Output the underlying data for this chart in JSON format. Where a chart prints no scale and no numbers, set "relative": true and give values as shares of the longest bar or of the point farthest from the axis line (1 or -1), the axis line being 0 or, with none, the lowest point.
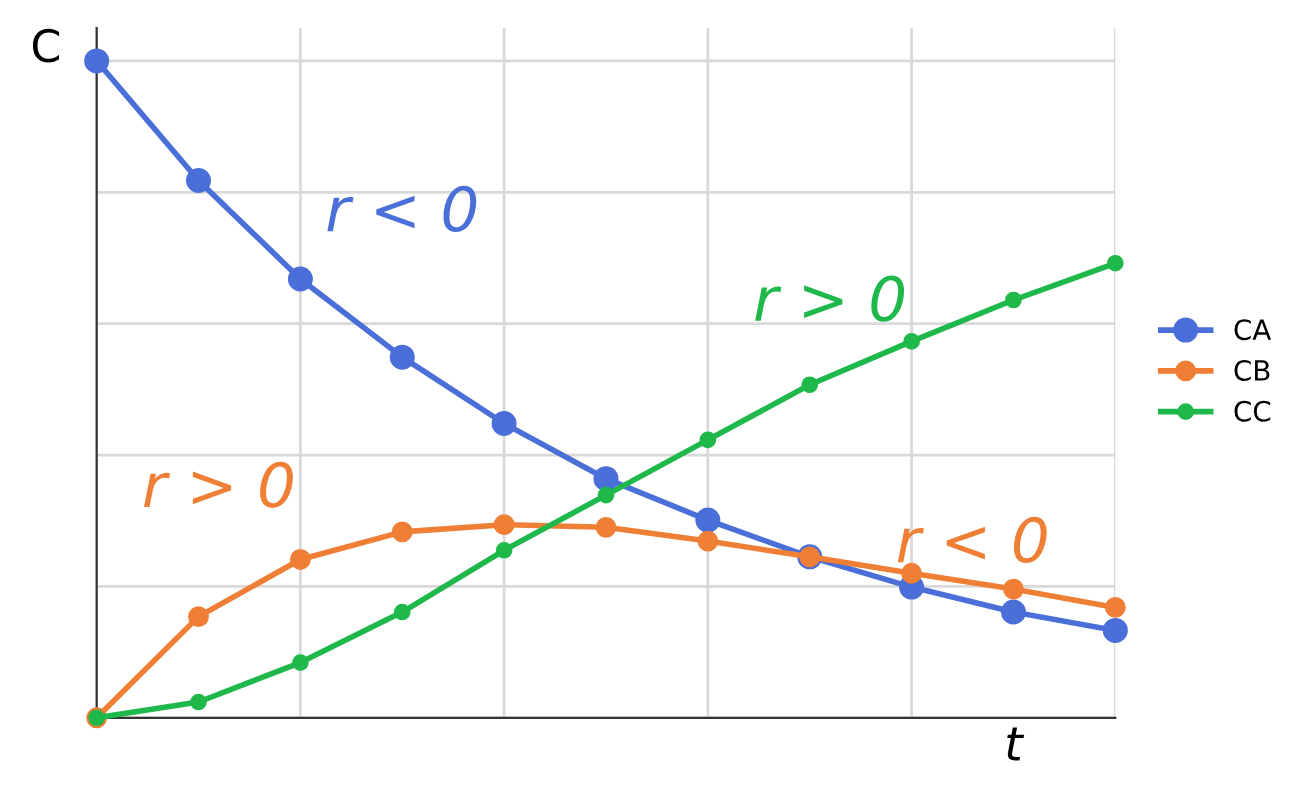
{
  "chart_data": {
    "type": "line",
    "relative": true,
    "xlabel": "t",
    "ylabel": "C",
    "categories": [
      null,
      null,
      null,
      null,
      null,
      null,
      null,
      null,
      null,
      null,
      null
    ],
    "series": [
      {
        "name": "CA",
        "color": "#4a6fd8",
        "values": [
          1,
          0.818,
          0.668,
          0.549,
          0.448,
          0.364,
          0.301,
          0.245,
          0.199,
          0.161,
          0.133
        ]
      },
      {
        "name": "CB",
        "color": "#f07f36",
        "values": [
          0,
          0.154,
          0.241,
          0.283,
          0.294,
          0.29,
          0.269,
          0.245,
          0.22,
          0.196,
          0.168
        ]
      },
      {
        "name": "CC",
        "color": "#1fb84a",
        "values": [
          0,
          0.024,
          0.084,
          0.161,
          0.255,
          0.339,
          0.423,
          0.507,
          0.573,
          0.636,
          0.692
        ]
      }
    ],
    "annotations": [
      "r < 0",
      "r > 0",
      "r > 0",
      "r < 0"
    ],
    "grid": true,
    "legend": "right",
    "marker": "circle",
    "line_style": "solid",
    "tick_labels": false
  }
}
